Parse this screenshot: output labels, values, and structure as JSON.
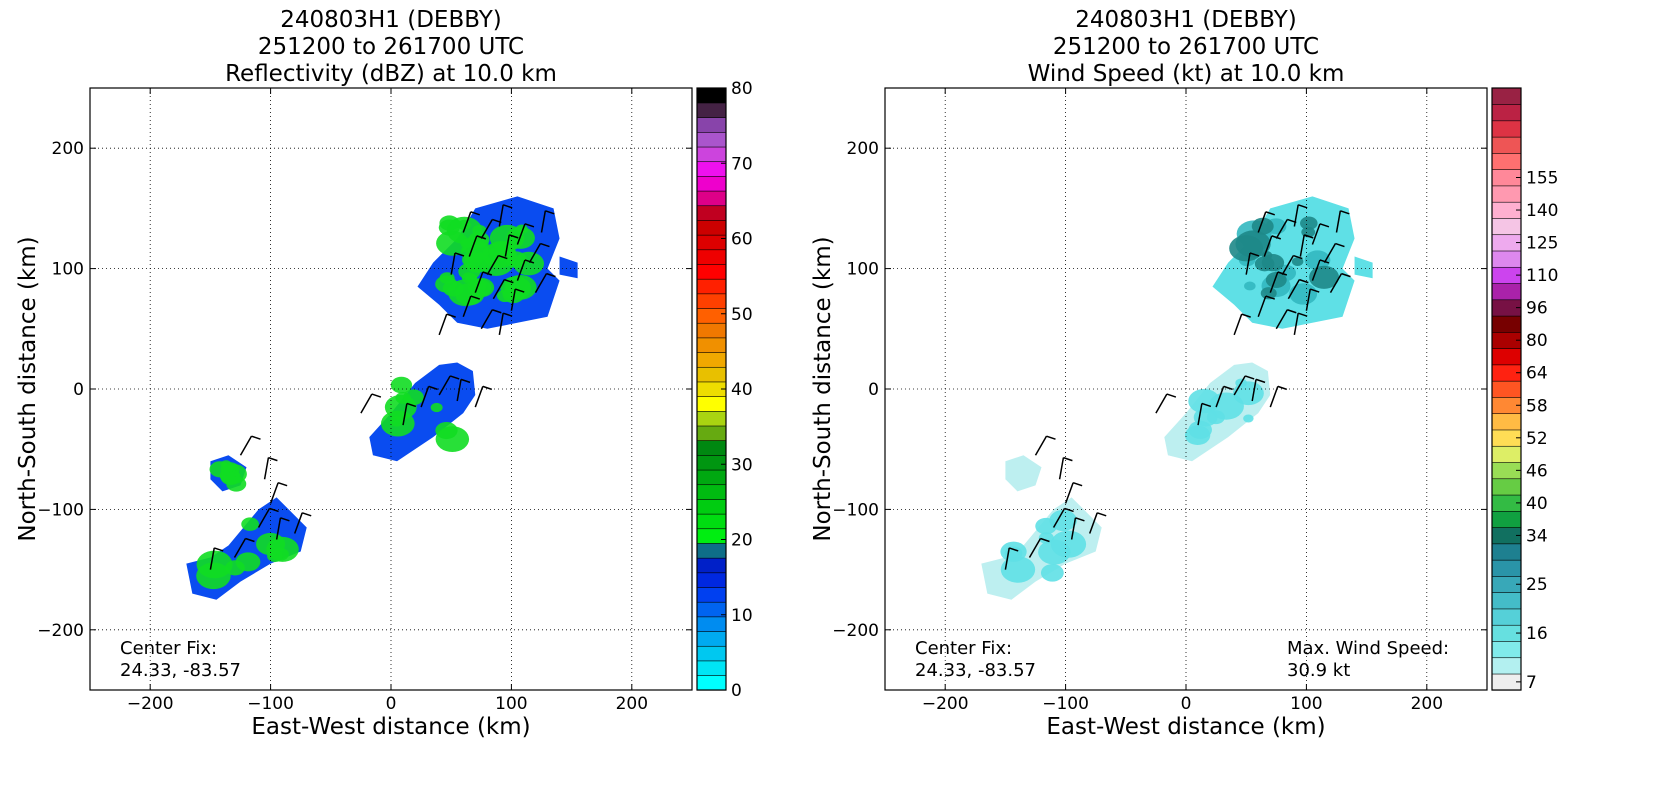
{
  "chart_data": [
    {
      "type": "heatmap",
      "title": [
        "240803H1 (DEBBY)",
        "251200 to 261700 UTC",
        "Reflectivity (dBZ) at 10.0 km"
      ],
      "xlabel": "East-West distance (km)",
      "ylabel": "North-South distance (km)",
      "xlim": [
        -250,
        250
      ],
      "ylim": [
        -250,
        250
      ],
      "x_ticks": [
        -200,
        -100,
        0,
        100,
        200
      ],
      "y_ticks": [
        -200,
        -100,
        0,
        100,
        200
      ],
      "x_tick_labels": [
        "−200",
        "−100",
        "0",
        "100",
        "200"
      ],
      "y_tick_labels": [
        "−200",
        "−100",
        "0",
        "100",
        "200"
      ],
      "grid": true,
      "annotations": [
        {
          "lines": [
            "Center Fix:",
            "24.33, -83.57"
          ],
          "anchor": "bottom-left"
        }
      ],
      "colorbar": {
        "min": 0,
        "max": 80,
        "tick_values": [
          0,
          10,
          20,
          30,
          40,
          50,
          60,
          70,
          80
        ],
        "tick_labels": [
          "0",
          "10",
          "20",
          "30",
          "40",
          "50",
          "60",
          "70",
          "80"
        ],
        "colors": [
          "#00ffff",
          "#00e5f5",
          "#00c8f0",
          "#00aaf0",
          "#008cf0",
          "#0064f0",
          "#0040f0",
          "#0028e0",
          "#0020c8",
          "#0e6e88",
          "#00ee11",
          "#00dd11",
          "#00cc11",
          "#00bb11",
          "#00a811",
          "#009611",
          "#008811",
          "#66aa11",
          "#aad411",
          "#ffff00",
          "#eedd00",
          "#e8c000",
          "#f0a800",
          "#f09000",
          "#f07800",
          "#ff6000",
          "#ff4000",
          "#ff2000",
          "#ff0000",
          "#ee0000",
          "#dd0000",
          "#cc0000",
          "#c00020",
          "#dd0088",
          "#ee00cc",
          "#ee11ee",
          "#cc44dd",
          "#aa55cc",
          "#8844aa",
          "#442244",
          "#000000"
        ]
      },
      "echo_regions": [
        {
          "name": "north-band",
          "poly": [
            [
              70,
              150
            ],
            [
              105,
              160
            ],
            [
              135,
              150
            ],
            [
              140,
              125
            ],
            [
              130,
              100
            ],
            [
              140,
              90
            ],
            [
              130,
              60
            ],
            [
              105,
              55
            ],
            [
              80,
              50
            ],
            [
              55,
              55
            ],
            [
              40,
              70
            ],
            [
              22,
              85
            ],
            [
              35,
              105
            ],
            [
              55,
              125
            ]
          ],
          "levels": [
            "blue",
            "green",
            "green",
            "green"
          ]
        },
        {
          "name": "north-east-cell",
          "poly": [
            [
              140,
              110
            ],
            [
              155,
              105
            ],
            [
              155,
              92
            ],
            [
              140,
              95
            ]
          ],
          "levels": [
            "blue"
          ]
        },
        {
          "name": "central-band",
          "poly": [
            [
              -15,
              -55
            ],
            [
              5,
              -60
            ],
            [
              35,
              -40
            ],
            [
              60,
              -20
            ],
            [
              70,
              -5
            ],
            [
              68,
              15
            ],
            [
              55,
              22
            ],
            [
              40,
              20
            ],
            [
              20,
              5
            ],
            [
              0,
              -20
            ],
            [
              -18,
              -40
            ]
          ],
          "levels": [
            "blue",
            "green"
          ]
        },
        {
          "name": "west-cell-a",
          "poly": [
            [
              -150,
              -60
            ],
            [
              -135,
              -55
            ],
            [
              -120,
              -65
            ],
            [
              -125,
              -80
            ],
            [
              -140,
              -85
            ],
            [
              -150,
              -75
            ]
          ],
          "levels": [
            "blue",
            "green"
          ]
        },
        {
          "name": "west-cell-b",
          "poly": [
            [
              -170,
              -145
            ],
            [
              -150,
              -140
            ],
            [
              -135,
              -130
            ],
            [
              -110,
              -100
            ],
            [
              -95,
              -90
            ],
            [
              -70,
              -115
            ],
            [
              -75,
              -135
            ],
            [
              -100,
              -145
            ],
            [
              -125,
              -160
            ],
            [
              -145,
              -175
            ],
            [
              -165,
              -170
            ]
          ],
          "levels": [
            "blue",
            "green"
          ]
        }
      ],
      "barbs": [
        [
          60,
          130
        ],
        [
          75,
          125
        ],
        [
          90,
          135
        ],
        [
          105,
          120
        ],
        [
          115,
          105
        ],
        [
          125,
          130
        ],
        [
          65,
          110
        ],
        [
          80,
          95
        ],
        [
          95,
          110
        ],
        [
          105,
          90
        ],
        [
          120,
          80
        ],
        [
          50,
          95
        ],
        [
          70,
          80
        ],
        [
          85,
          75
        ],
        [
          100,
          65
        ],
        [
          60,
          60
        ],
        [
          75,
          50
        ],
        [
          90,
          45
        ],
        [
          40,
          45
        ],
        [
          -25,
          -20
        ],
        [
          10,
          -30
        ],
        [
          25,
          -15
        ],
        [
          40,
          -5
        ],
        [
          55,
          -10
        ],
        [
          70,
          -15
        ],
        [
          -125,
          -55
        ],
        [
          -105,
          -75
        ],
        [
          -100,
          -95
        ],
        [
          -110,
          -115
        ],
        [
          -95,
          -125
        ],
        [
          -80,
          -120
        ],
        [
          -130,
          -140
        ],
        [
          -150,
          -150
        ]
      ]
    },
    {
      "type": "heatmap",
      "title": [
        "240803H1 (DEBBY)",
        "251200 to 261700 UTC",
        "Wind Speed (kt) at 10.0 km"
      ],
      "xlabel": "East-West distance (km)",
      "ylabel": "North-South distance (km)",
      "xlim": [
        -250,
        250
      ],
      "ylim": [
        -250,
        250
      ],
      "x_ticks": [
        -200,
        -100,
        0,
        100,
        200
      ],
      "y_ticks": [
        -200,
        -100,
        0,
        100,
        200
      ],
      "x_tick_labels": [
        "−200",
        "−100",
        "0",
        "100",
        "200"
      ],
      "y_tick_labels": [
        "−200",
        "−100",
        "0",
        "100",
        "200"
      ],
      "grid": true,
      "annotations": [
        {
          "lines": [
            "Center Fix:",
            "24.33, -83.57"
          ],
          "anchor": "bottom-left"
        },
        {
          "lines": [
            "Max. Wind Speed:",
            "30.9 kt"
          ],
          "anchor": "bottom-right"
        }
      ],
      "colorbar": {
        "tick_labels": [
          "7",
          "16",
          "25",
          "34",
          "40",
          "46",
          "52",
          "58",
          "64",
          "80",
          "96",
          "110",
          "125",
          "140",
          "155"
        ],
        "tick_bins": [
          0,
          3,
          6,
          9,
          11,
          13,
          15,
          17,
          19,
          21,
          23,
          25,
          27,
          29,
          31
        ],
        "colors": [
          "#eeeeee",
          "#b3f0f0",
          "#80eaea",
          "#66e0e0",
          "#55d0d8",
          "#44bcc8",
          "#38a8b8",
          "#2a94a8",
          "#1e8090",
          "#117060",
          "#10a040",
          "#33bb44",
          "#66cc44",
          "#99dd55",
          "#ddee66",
          "#ffdd55",
          "#ffbb44",
          "#ff8833",
          "#ff5522",
          "#ff2211",
          "#dd0000",
          "#aa0000",
          "#770000",
          "#771144",
          "#aa22aa",
          "#cc44ee",
          "#dd88ee",
          "#eeaaee",
          "#f5c5e5",
          "#ffb0d0",
          "#ff99b0",
          "#ff8899",
          "#ff7070",
          "#ee5555",
          "#dd3344",
          "#bb2244",
          "#992244"
        ]
      },
      "echo_regions": [
        {
          "name": "north-band",
          "poly": [
            [
              70,
              150
            ],
            [
              105,
              160
            ],
            [
              135,
              150
            ],
            [
              140,
              125
            ],
            [
              130,
              100
            ],
            [
              140,
              90
            ],
            [
              130,
              60
            ],
            [
              105,
              55
            ],
            [
              80,
              50
            ],
            [
              55,
              55
            ],
            [
              40,
              70
            ],
            [
              22,
              85
            ],
            [
              35,
              105
            ],
            [
              55,
              125
            ]
          ],
          "levels": [
            "cyan",
            "teal",
            "dark-teal"
          ]
        },
        {
          "name": "north-east-cell",
          "poly": [
            [
              140,
              110
            ],
            [
              155,
              105
            ],
            [
              155,
              92
            ],
            [
              140,
              95
            ]
          ],
          "levels": [
            "cyan"
          ]
        },
        {
          "name": "central-band",
          "poly": [
            [
              -15,
              -55
            ],
            [
              5,
              -60
            ],
            [
              35,
              -40
            ],
            [
              60,
              -20
            ],
            [
              70,
              -5
            ],
            [
              68,
              15
            ],
            [
              55,
              22
            ],
            [
              40,
              20
            ],
            [
              20,
              5
            ],
            [
              0,
              -20
            ],
            [
              -18,
              -40
            ]
          ],
          "levels": [
            "light-cyan",
            "cyan"
          ]
        },
        {
          "name": "west-cell-a",
          "poly": [
            [
              -150,
              -60
            ],
            [
              -135,
              -55
            ],
            [
              -120,
              -65
            ],
            [
              -125,
              -80
            ],
            [
              -140,
              -85
            ],
            [
              -150,
              -75
            ]
          ],
          "levels": [
            "light-cyan"
          ]
        },
        {
          "name": "west-cell-b",
          "poly": [
            [
              -170,
              -145
            ],
            [
              -150,
              -140
            ],
            [
              -135,
              -130
            ],
            [
              -110,
              -100
            ],
            [
              -95,
              -90
            ],
            [
              -70,
              -115
            ],
            [
              -75,
              -135
            ],
            [
              -100,
              -145
            ],
            [
              -125,
              -160
            ],
            [
              -145,
              -175
            ],
            [
              -165,
              -170
            ]
          ],
          "levels": [
            "light-cyan",
            "cyan"
          ]
        }
      ],
      "barbs": [
        [
          60,
          130
        ],
        [
          75,
          125
        ],
        [
          90,
          135
        ],
        [
          105,
          120
        ],
        [
          115,
          105
        ],
        [
          125,
          130
        ],
        [
          65,
          110
        ],
        [
          80,
          95
        ],
        [
          95,
          110
        ],
        [
          105,
          90
        ],
        [
          120,
          80
        ],
        [
          50,
          95
        ],
        [
          70,
          80
        ],
        [
          85,
          75
        ],
        [
          100,
          65
        ],
        [
          60,
          60
        ],
        [
          75,
          50
        ],
        [
          90,
          45
        ],
        [
          40,
          45
        ],
        [
          -25,
          -20
        ],
        [
          10,
          -30
        ],
        [
          25,
          -15
        ],
        [
          40,
          -5
        ],
        [
          55,
          -10
        ],
        [
          70,
          -15
        ],
        [
          -125,
          -55
        ],
        [
          -105,
          -75
        ],
        [
          -100,
          -95
        ],
        [
          -110,
          -115
        ],
        [
          -95,
          -125
        ],
        [
          -80,
          -120
        ],
        [
          -130,
          -140
        ],
        [
          -150,
          -150
        ]
      ]
    }
  ]
}
